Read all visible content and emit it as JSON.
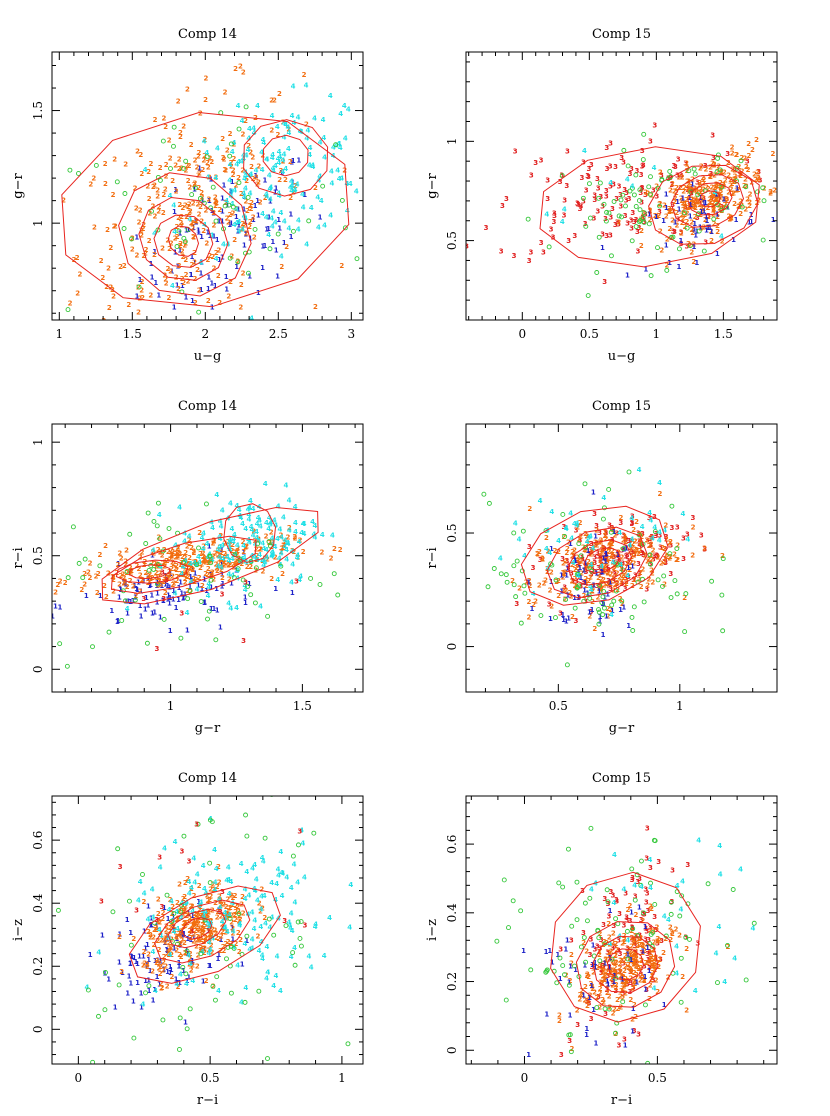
{
  "chart_data": [
    {
      "type": "scatter",
      "title": "Comp 14",
      "xlabel": "u−g",
      "ylabel": "g−r",
      "xlim": [
        0.95,
        3.08
      ],
      "ylim": [
        0.57,
        1.76
      ],
      "xticks": [
        {
          "v": 1,
          "label": "1"
        },
        {
          "v": 1.5,
          "label": "1.5"
        },
        {
          "v": 2,
          "label": "2"
        },
        {
          "v": 2.5,
          "label": "2.5"
        },
        {
          "v": 3,
          "label": "3"
        }
      ],
      "yticks": [
        {
          "v": 1,
          "label": "1"
        },
        {
          "v": 1.5,
          "label": "1.5"
        }
      ],
      "series": [
        {
          "name": "1",
          "marker": "1",
          "color": "#1e22c8",
          "cx": 2.15,
          "cy": 0.93,
          "sx": 0.3,
          "sy": 0.17,
          "rho": 0.5,
          "n": 110
        },
        {
          "name": "2",
          "marker": "2",
          "color": "#f26d0f",
          "cx": 1.9,
          "cy": 1.05,
          "sx": 0.38,
          "sy": 0.26,
          "rho": 0.35,
          "n": 300
        },
        {
          "name": "4",
          "marker": "4",
          "color": "#22e0e6",
          "cx": 2.5,
          "cy": 1.22,
          "sx": 0.32,
          "sy": 0.16,
          "rho": 0.3,
          "n": 170
        },
        {
          "name": "o",
          "marker": "o",
          "color": "#34c73a",
          "cx": 2.0,
          "cy": 1.0,
          "sx": 0.55,
          "sy": 0.3,
          "rho": 0.2,
          "n": 65
        }
      ],
      "contours": [
        {
          "cx": 2.0,
          "cy": 1.06,
          "a": 1.03,
          "b": 0.43,
          "angle": 12
        },
        {
          "cx": 1.86,
          "cy": 0.95,
          "a": 0.45,
          "b": 0.28,
          "angle": 18
        },
        {
          "cx": 1.85,
          "cy": 0.93,
          "a": 0.3,
          "b": 0.19,
          "angle": 20
        },
        {
          "cx": 1.85,
          "cy": 0.92,
          "a": 0.2,
          "b": 0.12,
          "angle": 20
        },
        {
          "cx": 1.85,
          "cy": 0.92,
          "a": 0.1,
          "b": 0.07,
          "angle": 20
        },
        {
          "cx": 2.55,
          "cy": 1.29,
          "a": 0.3,
          "b": 0.17,
          "angle": 5
        },
        {
          "cx": 2.55,
          "cy": 1.3,
          "a": 0.16,
          "b": 0.09,
          "angle": 5
        }
      ]
    },
    {
      "type": "scatter",
      "title": "Comp 15",
      "xlabel": "u−g",
      "ylabel": "g−r",
      "xlim": [
        -0.42,
        1.9
      ],
      "ylim": [
        0.1,
        1.45
      ],
      "xticks": [
        {
          "v": 0,
          "label": "0"
        },
        {
          "v": 0.5,
          "label": "0.5"
        },
        {
          "v": 1,
          "label": "1"
        },
        {
          "v": 1.5,
          "label": "1.5"
        }
      ],
      "yticks": [
        {
          "v": 0.5,
          "label": "0.5"
        },
        {
          "v": 1,
          "label": "1"
        }
      ],
      "series": [
        {
          "name": "3",
          "marker": "3",
          "color": "#e01c1c",
          "cx": 0.7,
          "cy": 0.72,
          "sx": 0.45,
          "sy": 0.15,
          "rho": 0.2,
          "n": 150
        },
        {
          "name": "2",
          "marker": "2",
          "color": "#f26d0f",
          "cx": 1.38,
          "cy": 0.72,
          "sx": 0.22,
          "sy": 0.11,
          "rho": 0.5,
          "n": 260
        },
        {
          "name": "1",
          "marker": "1",
          "color": "#1e22c8",
          "cx": 1.35,
          "cy": 0.6,
          "sx": 0.2,
          "sy": 0.1,
          "rho": 0.4,
          "n": 50
        },
        {
          "name": "o",
          "marker": "o",
          "color": "#34c73a",
          "cx": 1.0,
          "cy": 0.68,
          "sx": 0.4,
          "sy": 0.15,
          "rho": 0.1,
          "n": 90
        },
        {
          "name": "4",
          "marker": "4",
          "color": "#22e0e6",
          "cx": 0.9,
          "cy": 0.7,
          "sx": 0.4,
          "sy": 0.12,
          "rho": 0.1,
          "n": 10
        }
      ],
      "contours": [
        {
          "cx": 0.95,
          "cy": 0.67,
          "a": 0.85,
          "b": 0.3,
          "angle": 6
        },
        {
          "cx": 1.35,
          "cy": 0.68,
          "a": 0.42,
          "b": 0.2,
          "angle": 22
        },
        {
          "cx": 1.38,
          "cy": 0.7,
          "a": 0.28,
          "b": 0.13,
          "angle": 24
        },
        {
          "cx": 1.4,
          "cy": 0.71,
          "a": 0.17,
          "b": 0.08,
          "angle": 24
        },
        {
          "cx": 1.4,
          "cy": 0.71,
          "a": 0.08,
          "b": 0.04,
          "angle": 24
        }
      ]
    },
    {
      "type": "scatter",
      "title": "Comp 14",
      "xlabel": "g−r",
      "ylabel": "r−i",
      "xlim": [
        0.55,
        1.73
      ],
      "ylim": [
        -0.1,
        1.08
      ],
      "xticks": [
        {
          "v": 1,
          "label": "1"
        },
        {
          "v": 1.5,
          "label": "1.5"
        }
      ],
      "yticks": [
        {
          "v": 0,
          "label": "0"
        },
        {
          "v": 0.5,
          "label": "0.5"
        },
        {
          "v": 1,
          "label": "1"
        }
      ],
      "series": [
        {
          "name": "1",
          "marker": "1",
          "color": "#1e22c8",
          "cx": 1.0,
          "cy": 0.33,
          "sx": 0.17,
          "sy": 0.07,
          "rho": 0.3,
          "n": 100
        },
        {
          "name": "2",
          "marker": "2",
          "color": "#f26d0f",
          "cx": 1.05,
          "cy": 0.46,
          "sx": 0.2,
          "sy": 0.06,
          "rho": 0.5,
          "n": 300
        },
        {
          "name": "4",
          "marker": "4",
          "color": "#22e0e6",
          "cx": 1.3,
          "cy": 0.56,
          "sx": 0.14,
          "sy": 0.12,
          "rho": 0.3,
          "n": 170
        },
        {
          "name": "o",
          "marker": "o",
          "color": "#34c73a",
          "cx": 1.1,
          "cy": 0.42,
          "sx": 0.3,
          "sy": 0.18,
          "rho": 0.1,
          "n": 70
        },
        {
          "name": "3",
          "marker": "3",
          "color": "#e01c1c",
          "cx": 1.15,
          "cy": 0.35,
          "sx": 0.2,
          "sy": 0.12,
          "rho": 0.0,
          "n": 10
        }
      ],
      "contours": [
        {
          "cx": 1.15,
          "cy": 0.5,
          "a": 0.46,
          "b": 0.14,
          "angle": 22
        },
        {
          "cx": 1.05,
          "cy": 0.46,
          "a": 0.3,
          "b": 0.09,
          "angle": 18
        },
        {
          "cx": 0.93,
          "cy": 0.43,
          "a": 0.14,
          "b": 0.05,
          "angle": 5
        },
        {
          "cx": 0.92,
          "cy": 0.43,
          "a": 0.08,
          "b": 0.03,
          "angle": 5
        },
        {
          "cx": 1.3,
          "cy": 0.6,
          "a": 0.1,
          "b": 0.13,
          "angle": 0
        }
      ]
    },
    {
      "type": "scatter",
      "title": "Comp 15",
      "xlabel": "g−r",
      "ylabel": "r−i",
      "xlim": [
        0.12,
        1.4
      ],
      "ylim": [
        -0.2,
        0.98
      ],
      "xticks": [
        {
          "v": 0.5,
          "label": "0.5"
        },
        {
          "v": 1,
          "label": "1"
        }
      ],
      "yticks": [
        {
          "v": 0,
          "label": "0"
        },
        {
          "v": 0.5,
          "label": "0.5"
        }
      ],
      "series": [
        {
          "name": "3",
          "marker": "3",
          "color": "#e01c1c",
          "cx": 0.72,
          "cy": 0.4,
          "sx": 0.14,
          "sy": 0.09,
          "rho": 0.4,
          "n": 150
        },
        {
          "name": "2",
          "marker": "2",
          "color": "#f26d0f",
          "cx": 0.68,
          "cy": 0.36,
          "sx": 0.15,
          "sy": 0.1,
          "rho": 0.4,
          "n": 250
        },
        {
          "name": "1",
          "marker": "1",
          "color": "#1e22c8",
          "cx": 0.6,
          "cy": 0.25,
          "sx": 0.12,
          "sy": 0.12,
          "rho": 0.2,
          "n": 60
        },
        {
          "name": "o",
          "marker": "o",
          "color": "#34c73a",
          "cx": 0.65,
          "cy": 0.33,
          "sx": 0.22,
          "sy": 0.18,
          "rho": 0.1,
          "n": 90
        },
        {
          "name": "4",
          "marker": "4",
          "color": "#22e0e6",
          "cx": 0.7,
          "cy": 0.5,
          "sx": 0.2,
          "sy": 0.12,
          "rho": 0.2,
          "n": 50
        }
      ],
      "contours": [
        {
          "cx": 0.65,
          "cy": 0.4,
          "a": 0.32,
          "b": 0.2,
          "angle": 25
        },
        {
          "cx": 0.66,
          "cy": 0.37,
          "a": 0.22,
          "b": 0.14,
          "angle": 28
        },
        {
          "cx": 0.67,
          "cy": 0.37,
          "a": 0.14,
          "b": 0.09,
          "angle": 28
        },
        {
          "cx": 0.68,
          "cy": 0.38,
          "a": 0.08,
          "b": 0.05,
          "angle": 28
        }
      ]
    },
    {
      "type": "scatter",
      "title": "Comp 14",
      "xlabel": "r−i",
      "ylabel": "i−z",
      "xlim": [
        -0.1,
        1.08
      ],
      "ylim": [
        -0.11,
        0.74
      ],
      "xticks": [
        {
          "v": 0,
          "label": "0"
        },
        {
          "v": 0.5,
          "label": "0.5"
        },
        {
          "v": 1,
          "label": "1"
        }
      ],
      "yticks": [
        {
          "v": 0,
          "label": "0"
        },
        {
          "v": 0.2,
          "label": "0.2"
        },
        {
          "v": 0.4,
          "label": "0.4"
        },
        {
          "v": 0.6,
          "label": "0.6"
        }
      ],
      "series": [
        {
          "name": "1",
          "marker": "1",
          "color": "#1e22c8",
          "cx": 0.33,
          "cy": 0.24,
          "sx": 0.12,
          "sy": 0.08,
          "rho": 0.3,
          "n": 100
        },
        {
          "name": "2",
          "marker": "2",
          "color": "#f26d0f",
          "cx": 0.45,
          "cy": 0.32,
          "sx": 0.1,
          "sy": 0.07,
          "rho": 0.4,
          "n": 280
        },
        {
          "name": "4",
          "marker": "4",
          "color": "#22e0e6",
          "cx": 0.58,
          "cy": 0.35,
          "sx": 0.2,
          "sy": 0.13,
          "rho": 0.2,
          "n": 160
        },
        {
          "name": "o",
          "marker": "o",
          "color": "#34c73a",
          "cx": 0.5,
          "cy": 0.32,
          "sx": 0.3,
          "sy": 0.18,
          "rho": 0.0,
          "n": 80
        },
        {
          "name": "3",
          "marker": "3",
          "color": "#e01c1c",
          "cx": 0.45,
          "cy": 0.4,
          "sx": 0.2,
          "sy": 0.12,
          "rho": 0.0,
          "n": 15
        }
      ],
      "contours": [
        {
          "cx": 0.48,
          "cy": 0.3,
          "a": 0.32,
          "b": 0.12,
          "angle": 30
        },
        {
          "cx": 0.47,
          "cy": 0.31,
          "a": 0.2,
          "b": 0.08,
          "angle": 30
        },
        {
          "cx": 0.45,
          "cy": 0.32,
          "a": 0.12,
          "b": 0.05,
          "angle": 30
        },
        {
          "cx": 0.45,
          "cy": 0.32,
          "a": 0.06,
          "b": 0.03,
          "angle": 30
        }
      ]
    },
    {
      "type": "scatter",
      "title": "Comp 15",
      "xlabel": "r−i",
      "ylabel": "i−z",
      "xlim": [
        -0.22,
        0.95
      ],
      "ylim": [
        -0.04,
        0.74
      ],
      "xticks": [
        {
          "v": 0,
          "label": "0"
        },
        {
          "v": 0.5,
          "label": "0.5"
        }
      ],
      "yticks": [
        {
          "v": 0,
          "label": "0"
        },
        {
          "v": 0.2,
          "label": "0.2"
        },
        {
          "v": 0.4,
          "label": "0.4"
        },
        {
          "v": 0.6,
          "label": "0.6"
        }
      ],
      "series": [
        {
          "name": "3",
          "marker": "3",
          "color": "#e01c1c",
          "cx": 0.38,
          "cy": 0.3,
          "sx": 0.1,
          "sy": 0.12,
          "rho": 0.3,
          "n": 120
        },
        {
          "name": "2",
          "marker": "2",
          "color": "#f26d0f",
          "cx": 0.38,
          "cy": 0.24,
          "sx": 0.09,
          "sy": 0.07,
          "rho": 0.4,
          "n": 250
        },
        {
          "name": "1",
          "marker": "1",
          "color": "#1e22c8",
          "cx": 0.25,
          "cy": 0.2,
          "sx": 0.12,
          "sy": 0.1,
          "rho": 0.2,
          "n": 50
        },
        {
          "name": "o",
          "marker": "o",
          "color": "#34c73a",
          "cx": 0.35,
          "cy": 0.3,
          "sx": 0.2,
          "sy": 0.14,
          "rho": 0.0,
          "n": 90
        },
        {
          "name": "4",
          "marker": "4",
          "color": "#22e0e6",
          "cx": 0.55,
          "cy": 0.4,
          "sx": 0.18,
          "sy": 0.1,
          "rho": 0.0,
          "n": 30
        }
      ],
      "contours": [
        {
          "cx": 0.38,
          "cy": 0.3,
          "a": 0.33,
          "b": 0.19,
          "angle": 75
        },
        {
          "cx": 0.38,
          "cy": 0.25,
          "a": 0.2,
          "b": 0.12,
          "angle": 55
        },
        {
          "cx": 0.38,
          "cy": 0.25,
          "a": 0.13,
          "b": 0.08,
          "angle": 55
        },
        {
          "cx": 0.38,
          "cy": 0.25,
          "a": 0.07,
          "b": 0.045,
          "angle": 55
        }
      ]
    }
  ]
}
